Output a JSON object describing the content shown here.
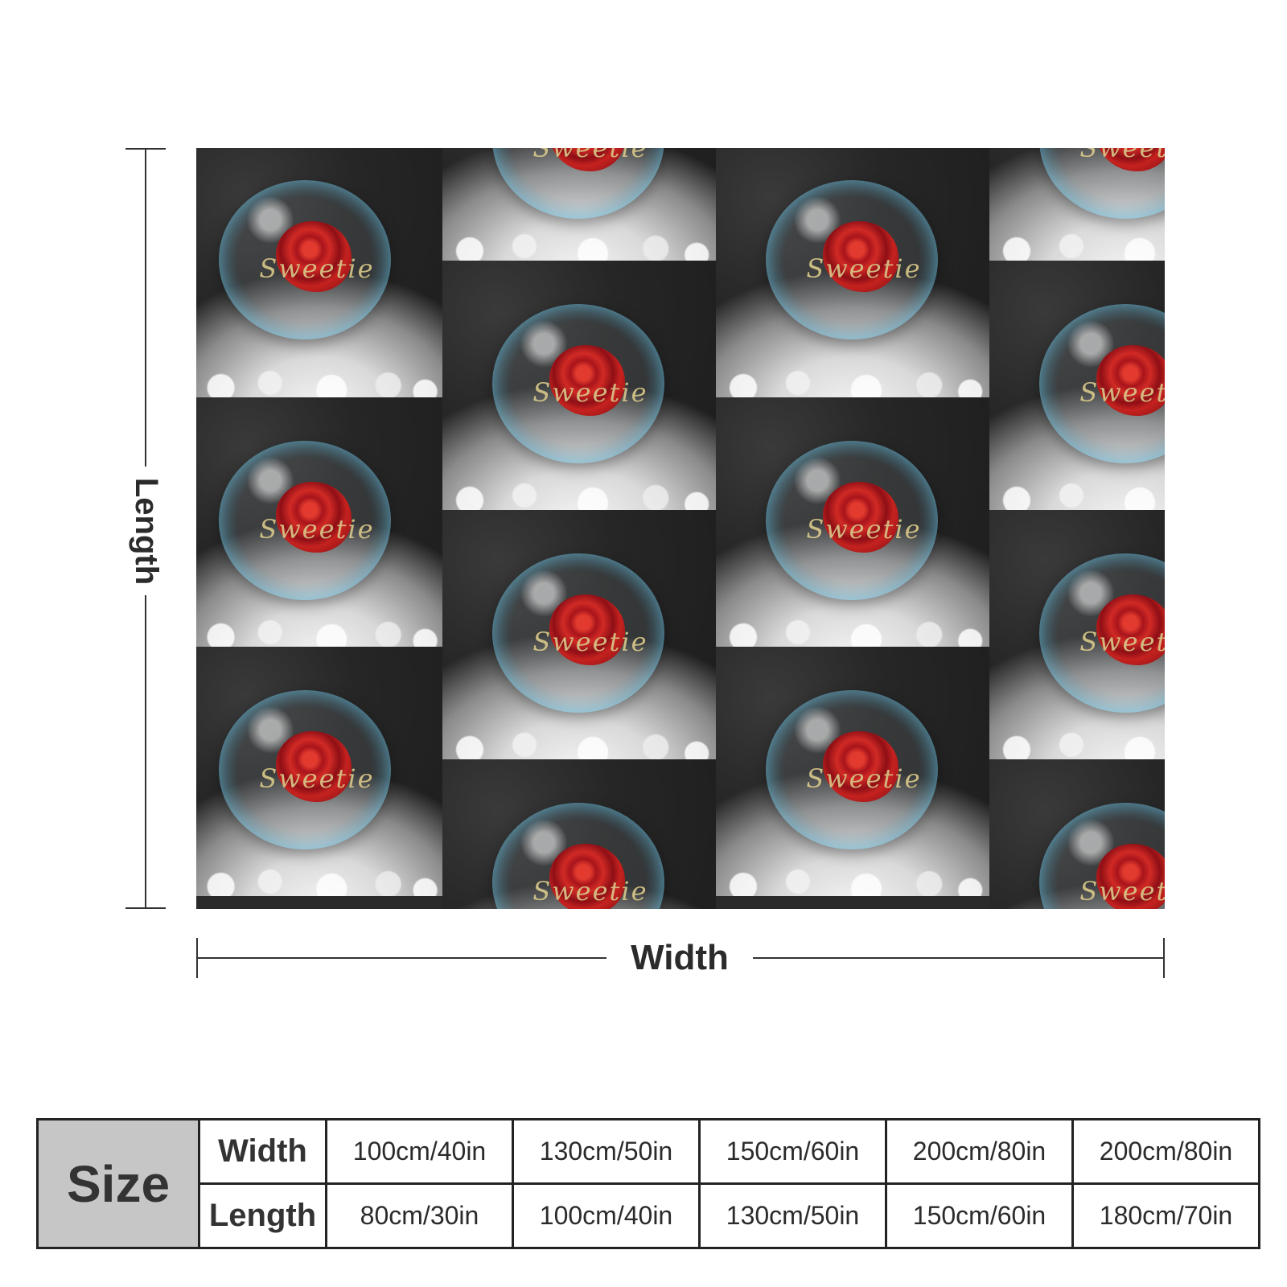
{
  "dimensions": {
    "length_label": "Length",
    "width_label": "Width"
  },
  "print": {
    "motif_text": "Sweetie"
  },
  "size_table": {
    "heading": "Size",
    "row_labels": {
      "width": "Width",
      "length": "Length"
    },
    "widths": [
      "100cm/40in",
      "130cm/50in",
      "150cm/60in",
      "200cm/80in",
      "200cm/80in"
    ],
    "lengths": [
      "80cm/30in",
      "100cm/40in",
      "130cm/50in",
      "150cm/60in",
      "180cm/70in"
    ]
  }
}
